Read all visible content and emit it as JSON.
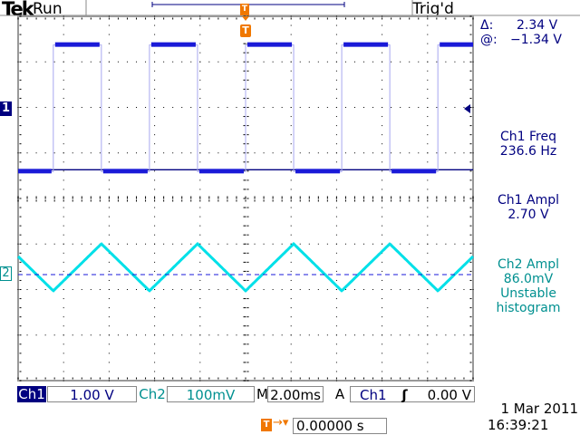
{
  "header": {
    "brand": "Tek",
    "state": "Run",
    "trigger_status": "Trig'd"
  },
  "cursor_readout": {
    "delta_label": "Δ:",
    "delta_value": "2.34 V",
    "at_label": "@:",
    "at_value": "−1.34 V"
  },
  "measurements": [
    {
      "label": "Ch1 Freq",
      "value": "236.6 Hz",
      "channel": "ch1"
    },
    {
      "label": "Ch1 Ampl",
      "value": "2.70 V",
      "channel": "ch1"
    },
    {
      "label": "Ch2 Ampl",
      "value": "86.0mV",
      "note1": "Unstable",
      "note2": "histogram",
      "channel": "ch2"
    }
  ],
  "markers": {
    "ch1": "1",
    "ch2": "2",
    "trigger": "T"
  },
  "status_bar": {
    "ch1_label": "Ch1",
    "ch1_scale": "1.00 V",
    "ch2_label": "Ch2",
    "ch2_scale": "100mV",
    "time_label": "M",
    "time_scale": "2.00ms",
    "trigger_mode": "A",
    "trigger_source": "Ch1",
    "trigger_slope_icon": "rising-edge-icon",
    "trigger_level": "0.00 V"
  },
  "footer": {
    "trigger_position": "0.00000 s",
    "date": "1 Mar  2011",
    "time": "16:39:21"
  },
  "colors": {
    "ch1": "#1a1ad8",
    "ch2": "#00e0e8",
    "ch1_text": "#000080",
    "ch2_text": "#009090",
    "trigger": "#f07800"
  },
  "chart_data": {
    "type": "line",
    "divisions": {
      "x": 10,
      "y": 8
    },
    "time_per_div_ms": 2.0,
    "series": [
      {
        "name": "Ch1",
        "shape": "square",
        "volts_per_div": 1.0,
        "frequency_hz": 236.6,
        "amplitude_v": 2.7
      },
      {
        "name": "Ch2",
        "shape": "triangle",
        "volts_per_div": 0.1,
        "amplitude_v": 0.086
      }
    ],
    "cursor_v": -1.34
  }
}
